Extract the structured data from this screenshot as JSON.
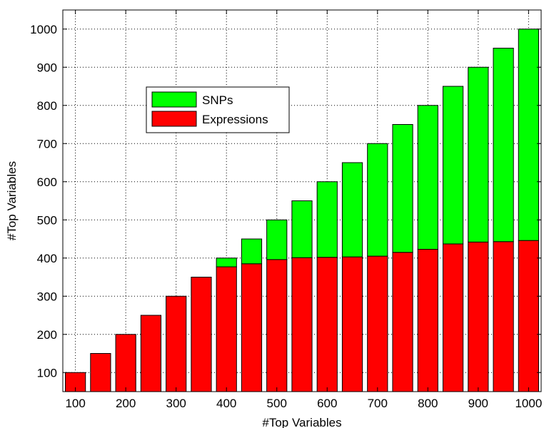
{
  "chart_data": {
    "type": "bar",
    "stacked": true,
    "title": "",
    "xlabel": "#Top Variables",
    "ylabel": "#Top Variables",
    "categories": [
      100,
      150,
      200,
      250,
      300,
      350,
      400,
      450,
      500,
      550,
      600,
      650,
      700,
      750,
      800,
      850,
      900,
      950,
      1000
    ],
    "xtick_labels": [
      "100",
      "200",
      "300",
      "400",
      "500",
      "600",
      "700",
      "800",
      "900",
      "1000"
    ],
    "xlim": [
      75,
      1025
    ],
    "ylim": [
      50,
      1050
    ],
    "yticks": [
      100,
      200,
      300,
      400,
      500,
      600,
      700,
      800,
      900,
      1000
    ],
    "grid": true,
    "legend_position": "upper-left",
    "series": [
      {
        "name": "Expressions",
        "color": "#ff0000",
        "values": [
          100,
          150,
          200,
          250,
          300,
          350,
          377,
          385,
          396,
          401,
          402,
          403,
          405,
          415,
          423,
          437,
          442,
          443,
          446
        ]
      },
      {
        "name": "SNPs",
        "color": "#00ff00",
        "values": [
          0,
          0,
          0,
          0,
          0,
          0,
          23,
          65,
          104,
          149,
          198,
          247,
          295,
          335,
          377,
          413,
          458,
          507,
          554
        ]
      }
    ],
    "legend_order": [
      "SNPs",
      "Expressions"
    ]
  }
}
